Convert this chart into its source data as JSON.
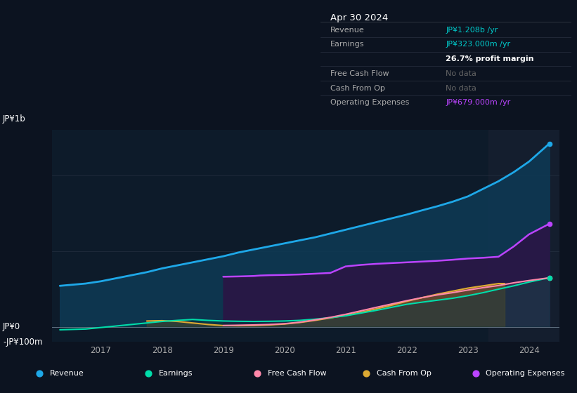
{
  "bg_color": "#0c1320",
  "plot_bg": "#0d1b2a",
  "grid_color": "#1a2a3a",
  "title_text": "Apr 30 2024",
  "table": {
    "header": "Apr 30 2024",
    "rows": [
      {
        "label": "Revenue",
        "value": "JP¥1.208b /yr",
        "value_color": "#00cccc",
        "label_color": "#aaaaaa"
      },
      {
        "label": "Earnings",
        "value": "JP¥323.000m /yr",
        "value_color": "#00cccc",
        "label_color": "#aaaaaa"
      },
      {
        "label": "",
        "value": "26.7% profit margin",
        "value_color": "#ffffff",
        "label_color": "#aaaaaa"
      },
      {
        "label": "Free Cash Flow",
        "value": "No data",
        "value_color": "#666666",
        "label_color": "#aaaaaa"
      },
      {
        "label": "Cash From Op",
        "value": "No data",
        "value_color": "#666666",
        "label_color": "#aaaaaa"
      },
      {
        "label": "Operating Expenses",
        "value": "JP¥679.000m /yr",
        "value_color": "#bb44ff",
        "label_color": "#aaaaaa"
      }
    ]
  },
  "ylabel_top": "JP¥1b",
  "ylabel_zero": "JP¥0",
  "ylabel_neg": "-JP¥100m",
  "years_x": [
    2016.33,
    2016.75,
    2017.0,
    2017.25,
    2017.5,
    2017.75,
    2018.0,
    2018.25,
    2018.5,
    2018.75,
    2019.0,
    2019.25,
    2019.5,
    2019.75,
    2020.0,
    2020.25,
    2020.5,
    2020.75,
    2021.0,
    2021.25,
    2021.5,
    2021.75,
    2022.0,
    2022.25,
    2022.5,
    2022.75,
    2023.0,
    2023.25,
    2023.5,
    2023.75,
    2024.0,
    2024.33
  ],
  "revenue": [
    270,
    285,
    300,
    320,
    340,
    360,
    385,
    405,
    425,
    445,
    465,
    490,
    510,
    530,
    550,
    570,
    590,
    615,
    640,
    665,
    690,
    715,
    740,
    768,
    795,
    825,
    860,
    910,
    960,
    1020,
    1090,
    1208
  ],
  "earnings": [
    -20,
    -15,
    -5,
    5,
    15,
    25,
    35,
    42,
    48,
    42,
    38,
    36,
    35,
    36,
    38,
    42,
    50,
    60,
    72,
    90,
    108,
    128,
    148,
    162,
    175,
    188,
    205,
    225,
    248,
    270,
    295,
    323
  ],
  "op_exp_x": [
    2019.0,
    2019.25,
    2019.5,
    2019.6,
    2019.75,
    2020.0,
    2020.25,
    2020.5,
    2020.75,
    2021.0,
    2021.1,
    2021.25,
    2021.5,
    2021.75,
    2022.0,
    2022.25,
    2022.5,
    2022.75,
    2023.0,
    2023.25,
    2023.5,
    2023.75,
    2024.0,
    2024.33
  ],
  "op_exp_y": [
    330,
    332,
    335,
    338,
    340,
    342,
    345,
    350,
    355,
    398,
    402,
    408,
    415,
    420,
    425,
    430,
    435,
    442,
    450,
    455,
    462,
    530,
    610,
    679
  ],
  "cash_op_x": [
    2017.75,
    2018.0,
    2018.25,
    2018.5,
    2018.75,
    2019.0,
    2019.25,
    2019.5,
    2019.75,
    2020.0,
    2020.25,
    2020.5,
    2020.75,
    2021.0,
    2021.25,
    2021.5,
    2021.75,
    2022.0,
    2022.25,
    2022.5,
    2022.75,
    2023.0,
    2023.25,
    2023.5,
    2023.6
  ],
  "cash_op_y": [
    38,
    40,
    35,
    25,
    15,
    8,
    7,
    8,
    12,
    18,
    28,
    42,
    58,
    75,
    95,
    118,
    142,
    168,
    192,
    215,
    235,
    255,
    270,
    285,
    285
  ],
  "fcf_x": [
    2019.0,
    2019.25,
    2019.5,
    2019.75,
    2020.0,
    2020.25,
    2020.5,
    2020.75,
    2021.0,
    2021.25,
    2021.5,
    2021.75,
    2022.0,
    2022.25,
    2022.5,
    2022.75,
    2023.0,
    2023.25,
    2023.5,
    2023.75,
    2024.0,
    2024.33
  ],
  "fcf_y": [
    8,
    10,
    12,
    15,
    20,
    30,
    45,
    62,
    82,
    105,
    128,
    150,
    172,
    192,
    210,
    225,
    242,
    258,
    272,
    290,
    305,
    323
  ],
  "revenue_color": "#1ea8e8",
  "earnings_color": "#00ddaa",
  "fcf_color": "#ff88aa",
  "cash_op_color": "#ddaa33",
  "op_exp_color": "#bb44ff",
  "ylim": [
    -100,
    1300
  ],
  "xlim": [
    2016.2,
    2024.5
  ],
  "x_ticks": [
    2017,
    2018,
    2019,
    2020,
    2021,
    2022,
    2023,
    2024
  ],
  "highlight_start": 2023.33,
  "highlight_color": "#141e2e",
  "legend": [
    {
      "label": "Revenue",
      "color": "#1ea8e8"
    },
    {
      "label": "Earnings",
      "color": "#00ddaa"
    },
    {
      "label": "Free Cash Flow",
      "color": "#ff88aa"
    },
    {
      "label": "Cash From Op",
      "color": "#ddaa33"
    },
    {
      "label": "Operating Expenses",
      "color": "#bb44ff"
    }
  ]
}
